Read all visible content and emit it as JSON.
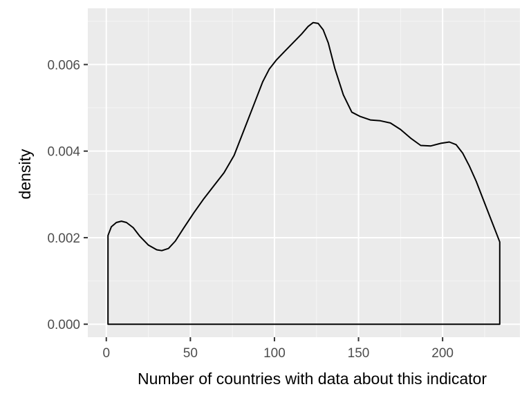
{
  "chart_data": {
    "type": "area",
    "xlabel": "Number of countries with data about this indicator",
    "ylabel": "density",
    "xlim": [
      -11,
      246
    ],
    "ylim": [
      -0.0003,
      0.0073
    ],
    "x_ticks": [
      0,
      50,
      100,
      150,
      200
    ],
    "x_tick_labels": [
      "0",
      "50",
      "100",
      "150",
      "200"
    ],
    "y_ticks": [
      0.0,
      0.002,
      0.004,
      0.006
    ],
    "y_tick_labels": [
      "0.000",
      "0.002",
      "0.004",
      "0.006"
    ],
    "grid": true,
    "fill_color": "none",
    "line_color": "#000000",
    "panel_background": "#ebebeb",
    "grid_color": "#ffffff",
    "series": [
      {
        "x": [
          1,
          3,
          6,
          9,
          12,
          16,
          20,
          25,
          30,
          33,
          37,
          41,
          46,
          52,
          58,
          64,
          70,
          76,
          82,
          88,
          93,
          97,
          101,
          106,
          111,
          116,
          120,
          123,
          126,
          129,
          132,
          136,
          141,
          146,
          151,
          157,
          163,
          169,
          175,
          181,
          187,
          193,
          199,
          204,
          208,
          212,
          216,
          220,
          224,
          228,
          232,
          234
        ],
        "y": [
          0.00205,
          0.00225,
          0.00235,
          0.00238,
          0.00235,
          0.00223,
          0.00203,
          0.00183,
          0.00172,
          0.0017,
          0.00175,
          0.00192,
          0.00222,
          0.00257,
          0.0029,
          0.0032,
          0.0035,
          0.0039,
          0.0045,
          0.0051,
          0.0056,
          0.0059,
          0.0061,
          0.0063,
          0.0065,
          0.0067,
          0.00688,
          0.00697,
          0.00695,
          0.0068,
          0.0065,
          0.0059,
          0.0053,
          0.0049,
          0.0048,
          0.00472,
          0.0047,
          0.00465,
          0.0045,
          0.0043,
          0.00413,
          0.00412,
          0.00418,
          0.00421,
          0.00415,
          0.00395,
          0.00365,
          0.0033,
          0.0029,
          0.0025,
          0.0021,
          0.0019
        ]
      }
    ]
  }
}
